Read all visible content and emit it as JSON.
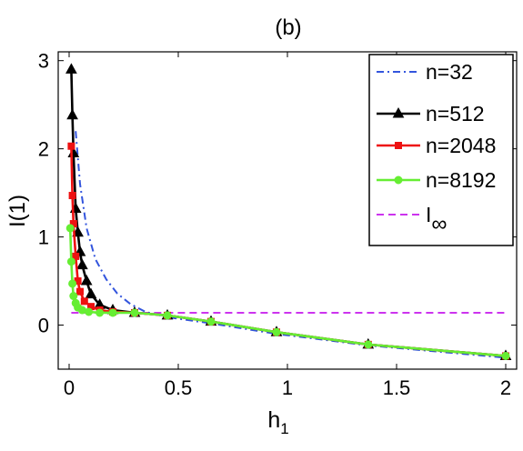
{
  "chart_data": {
    "type": "line",
    "title": "(b)",
    "xlabel": "h",
    "xlabel_sub": "1",
    "ylabel": "I(1)",
    "xlim": [
      -0.05,
      2.05
    ],
    "ylim": [
      -0.5,
      3.1
    ],
    "x_ticks": [
      0,
      0.5,
      1,
      1.5,
      2
    ],
    "x_tick_labels": [
      "0",
      "0.5",
      "1",
      "1.5",
      "2"
    ],
    "y_ticks": [
      0,
      1,
      2,
      3
    ],
    "y_tick_labels": [
      "0",
      "1",
      "2",
      "3"
    ],
    "grid": false,
    "legend_position": "top-right",
    "series": [
      {
        "name": "n=32",
        "color": "#3355dd",
        "dash": "dashdot",
        "marker": "none",
        "x": [
          0.03,
          0.05,
          0.08,
          0.12,
          0.17,
          0.22,
          0.28,
          0.35,
          0.45,
          0.65,
          0.95,
          1.37,
          2.0
        ],
        "y": [
          2.2,
          1.6,
          1.1,
          0.75,
          0.52,
          0.36,
          0.24,
          0.15,
          0.09,
          0.02,
          -0.1,
          -0.23,
          -0.37
        ]
      },
      {
        "name": "n=512",
        "color": "#000000",
        "dash": "solid",
        "marker": "triangle",
        "x": [
          0.01,
          0.015,
          0.02,
          0.03,
          0.04,
          0.05,
          0.06,
          0.08,
          0.1,
          0.14,
          0.2,
          0.3,
          0.45,
          0.65,
          0.95,
          1.37,
          2.0
        ],
        "y": [
          2.9,
          2.38,
          1.95,
          1.32,
          1.05,
          0.83,
          0.68,
          0.5,
          0.35,
          0.23,
          0.17,
          0.14,
          0.11,
          0.04,
          -0.08,
          -0.22,
          -0.35
        ]
      },
      {
        "name": "n=2048",
        "color": "#ee1111",
        "dash": "solid",
        "marker": "square",
        "x": [
          0.01,
          0.015,
          0.02,
          0.03,
          0.04,
          0.05,
          0.07,
          0.1,
          0.14,
          0.2,
          0.3,
          0.45,
          0.65,
          0.95,
          1.37,
          2.0
        ],
        "y": [
          2.03,
          1.47,
          1.15,
          0.78,
          0.5,
          0.38,
          0.27,
          0.21,
          0.17,
          0.15,
          0.14,
          0.11,
          0.04,
          -0.08,
          -0.22,
          -0.35
        ]
      },
      {
        "name": "n=8192",
        "color": "#66ee33",
        "dash": "solid",
        "marker": "circle",
        "x": [
          0.005,
          0.01,
          0.015,
          0.02,
          0.03,
          0.04,
          0.06,
          0.09,
          0.14,
          0.2,
          0.3,
          0.45,
          0.65,
          0.95,
          1.37,
          2.0
        ],
        "y": [
          1.1,
          0.72,
          0.47,
          0.33,
          0.25,
          0.2,
          0.17,
          0.15,
          0.14,
          0.14,
          0.14,
          0.11,
          0.04,
          -0.08,
          -0.22,
          -0.35
        ]
      },
      {
        "name": "I",
        "name_sub": "∞",
        "color": "#cc33ee",
        "dash": "dashed",
        "marker": "none",
        "x": [
          0.01,
          2.0
        ],
        "y": [
          0.14,
          0.14
        ]
      }
    ]
  }
}
